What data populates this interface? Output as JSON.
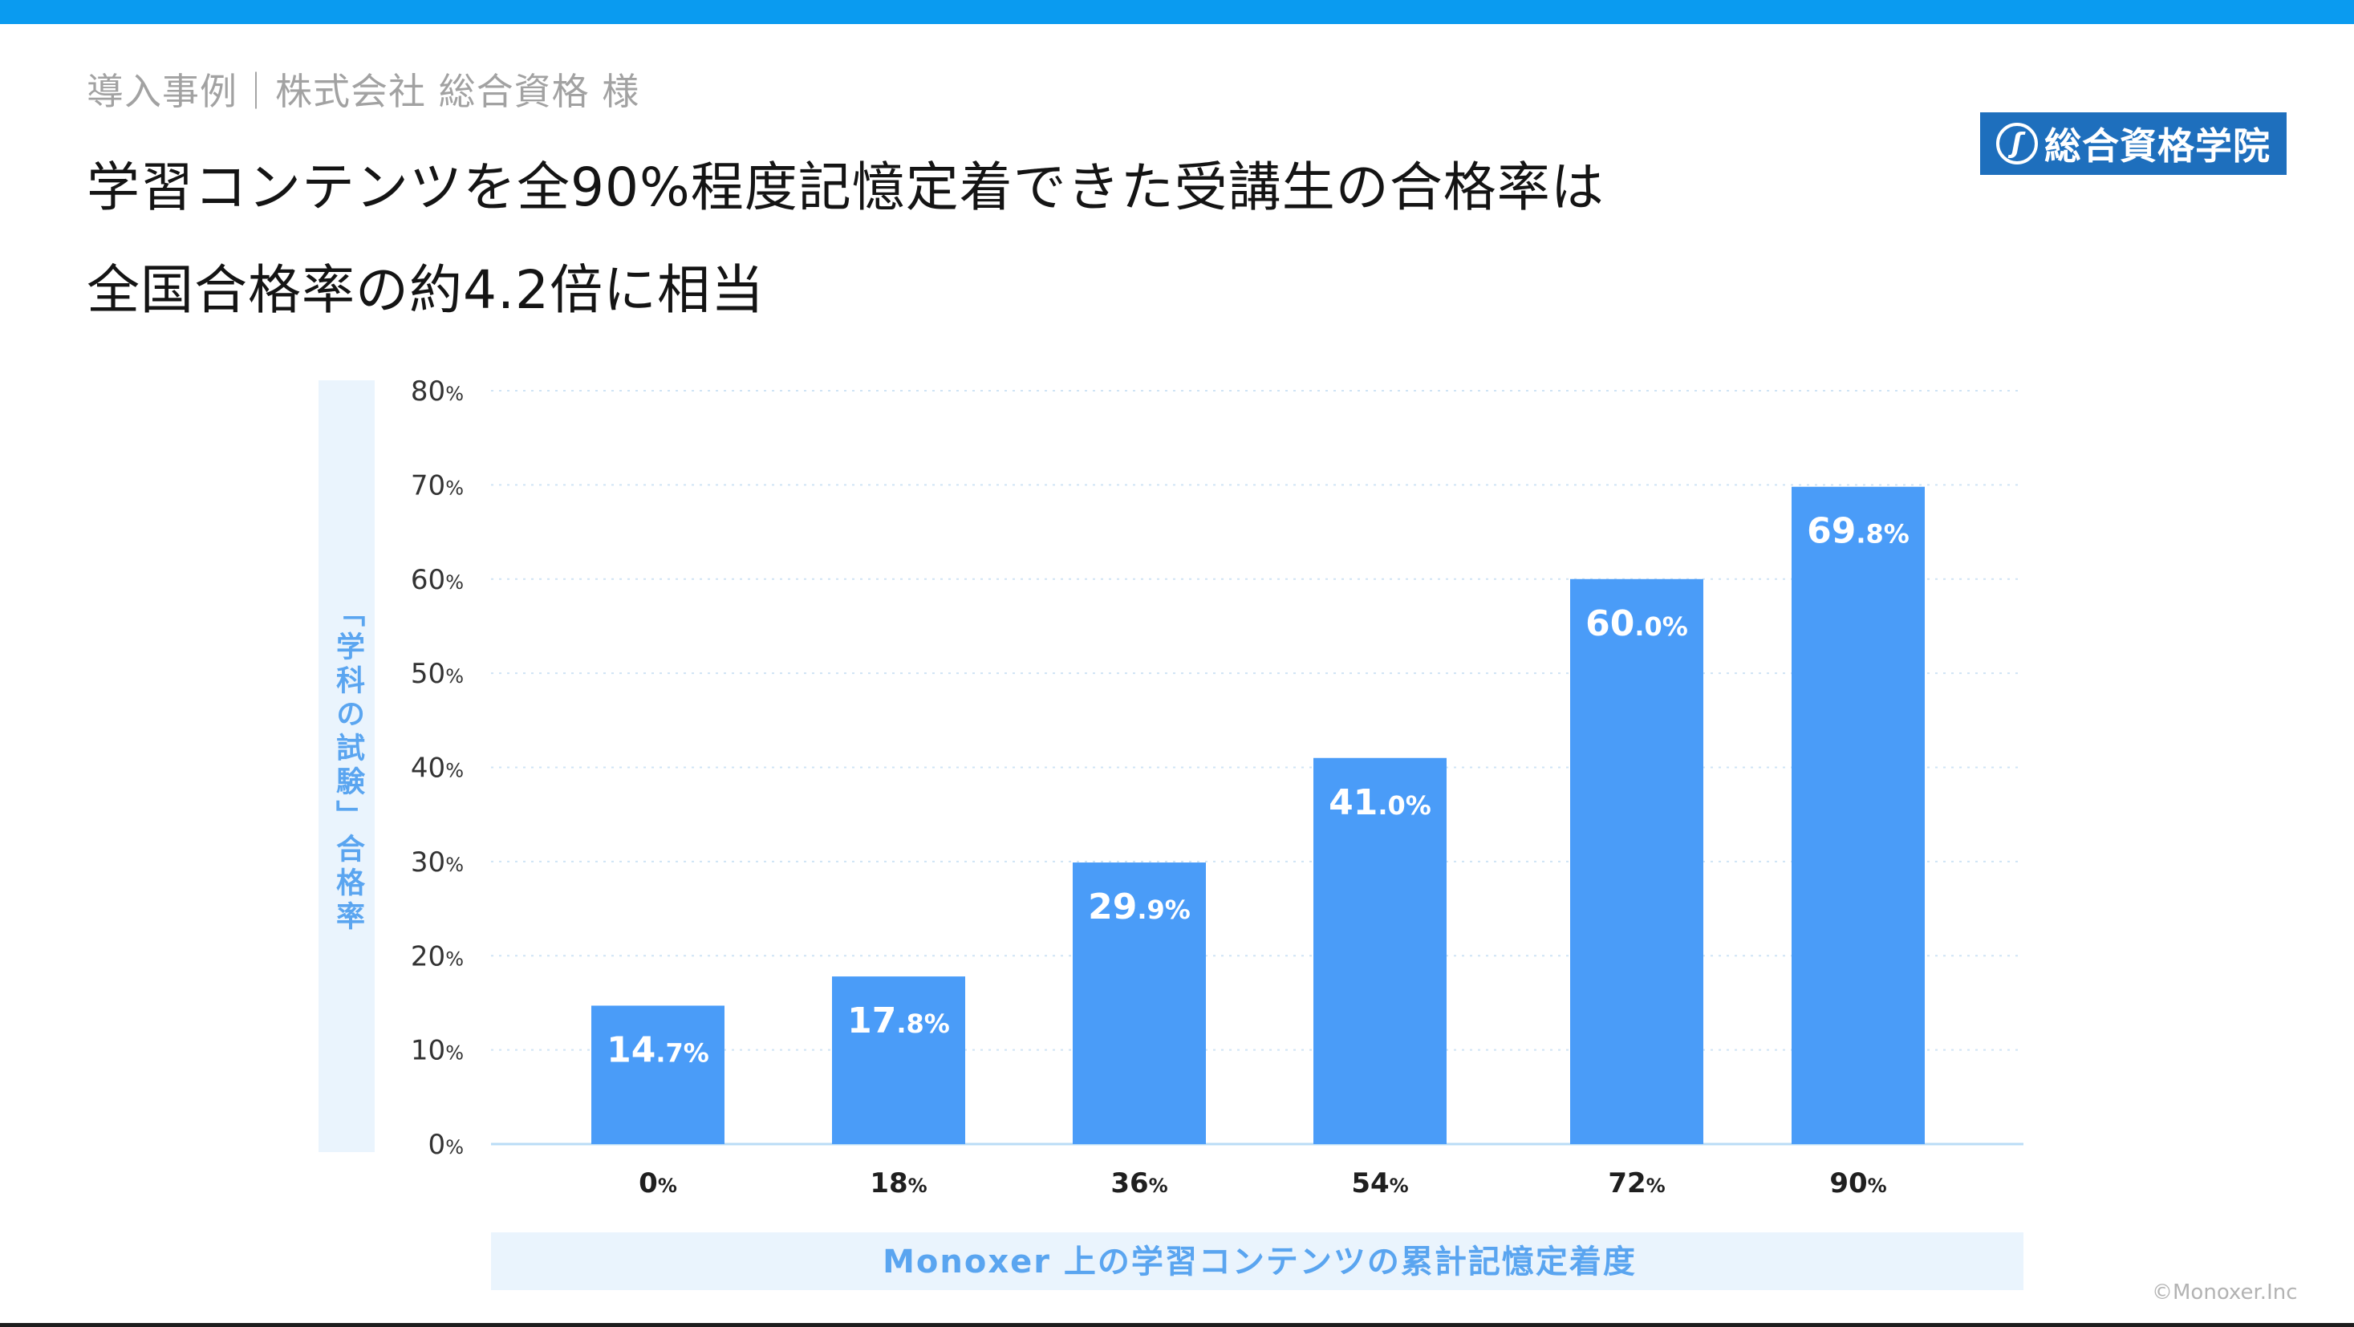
{
  "header": {
    "breadcrumb": "導入事例｜株式会社 総合資格 様",
    "title_line1": "学習コンテンツを全90%程度記憶定着できた受講生の合格率は",
    "title_line2": "全国合格率の約4.2倍に相当",
    "logo_text": "総合資格学院",
    "logo_mark": "ʃ"
  },
  "footer": {
    "copyright": "©Monoxer.Inc"
  },
  "colors": {
    "accent_bar": "#0a9bf0",
    "bar_fill": "#4a9cf8",
    "label_blue": "#5aa5f0",
    "label_panel": "#eaf4fd",
    "logo_bg": "#1e6fbd"
  },
  "chart_data": {
    "type": "bar",
    "title": "",
    "categories": [
      "0%",
      "18%",
      "36%",
      "54%",
      "72%",
      "90%"
    ],
    "values": [
      14.7,
      17.8,
      29.9,
      41.0,
      60.0,
      69.8
    ],
    "data_labels": [
      {
        "main": "14",
        "frac": ".7%"
      },
      {
        "main": "17",
        "frac": ".8%"
      },
      {
        "main": "29",
        "frac": ".9%"
      },
      {
        "main": "41",
        "frac": ".0%"
      },
      {
        "main": "60",
        "frac": ".0%"
      },
      {
        "main": "69",
        "frac": ".8%"
      }
    ],
    "xlabel": "Monoxer 上の学習コンテンツの累計記憶定着度",
    "ylabel": "「学科の試験」合格率",
    "ylim": [
      0,
      80
    ],
    "yticks": [
      {
        "value": 0,
        "num": "0",
        "unit": "%"
      },
      {
        "value": 10,
        "num": "10",
        "unit": "%"
      },
      {
        "value": 20,
        "num": "20",
        "unit": "%"
      },
      {
        "value": 30,
        "num": "30",
        "unit": "%"
      },
      {
        "value": 40,
        "num": "40",
        "unit": "%"
      },
      {
        "value": 50,
        "num": "50",
        "unit": "%"
      },
      {
        "value": 60,
        "num": "60",
        "unit": "%"
      },
      {
        "value": 70,
        "num": "70",
        "unit": "%"
      },
      {
        "value": 80,
        "num": "80",
        "unit": "%"
      }
    ],
    "grid": true,
    "gridline_style": "dotted"
  }
}
